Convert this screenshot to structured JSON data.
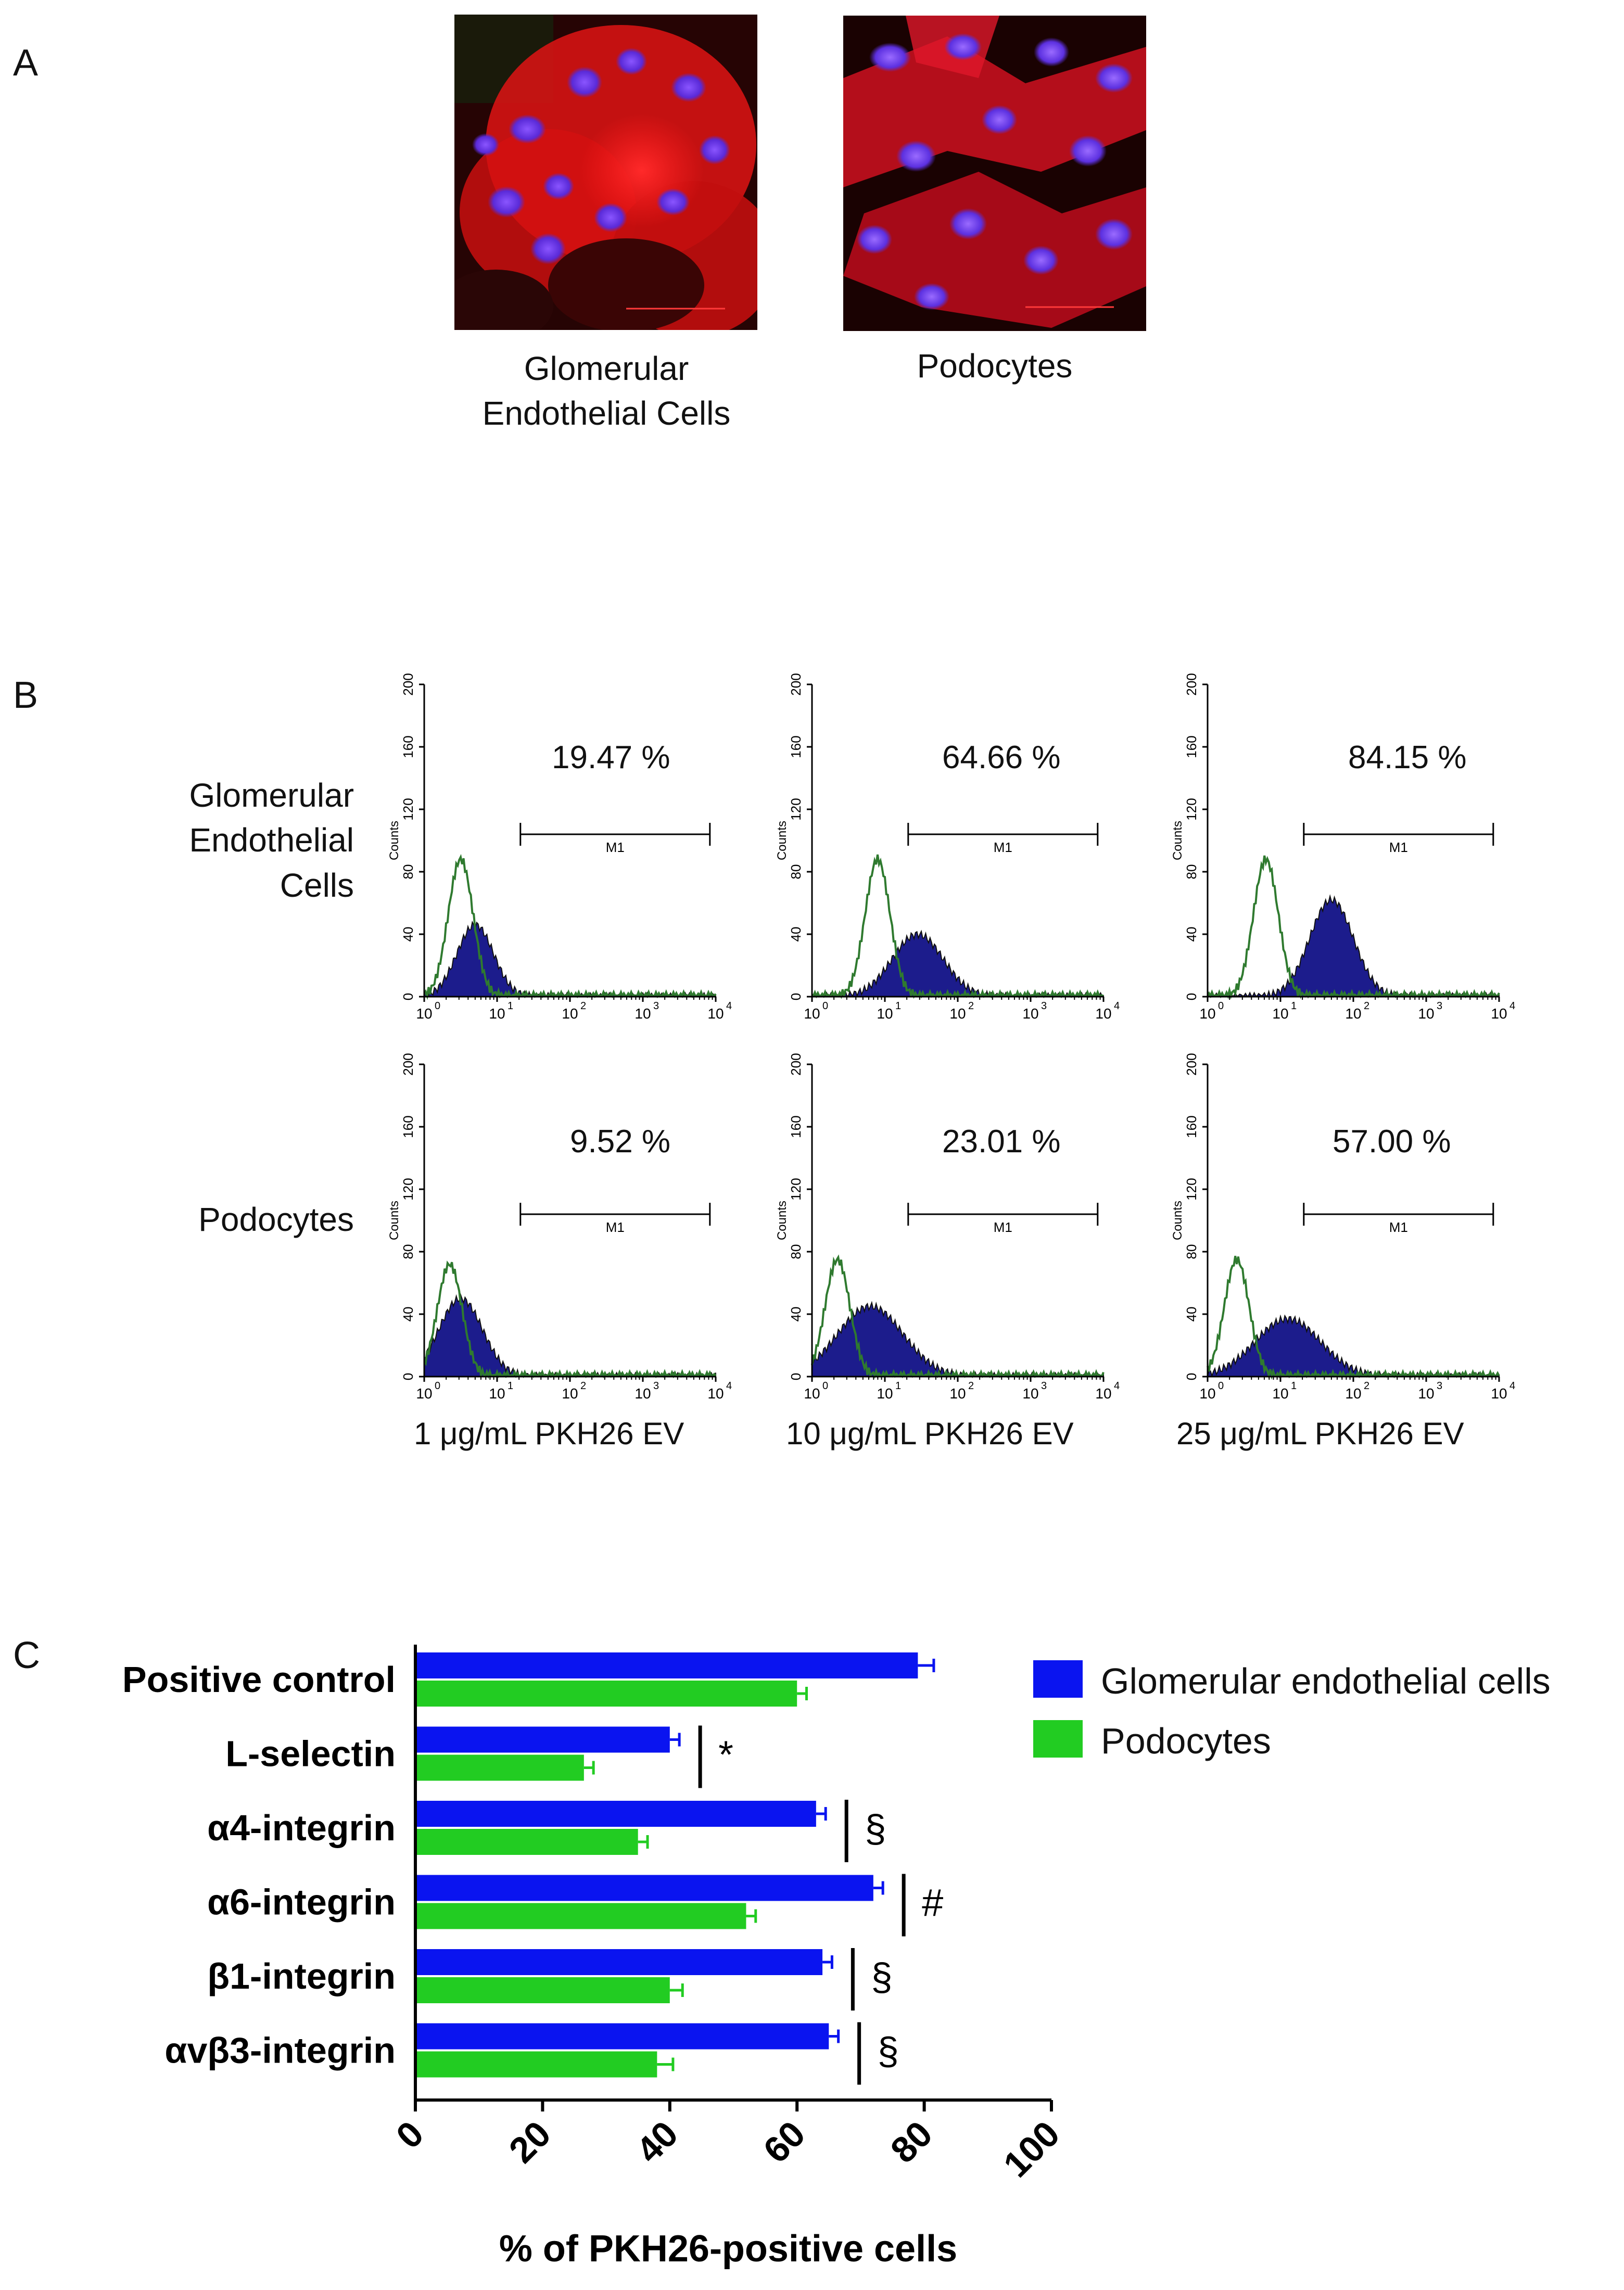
{
  "panel_a": {
    "letter": "A",
    "images": [
      {
        "caption_line1": "Glomerular",
        "caption_line2": "Endothelial Cells"
      },
      {
        "caption_line1": "Podocytes",
        "caption_line2": ""
      }
    ]
  },
  "panel_b": {
    "letter": "B",
    "row_labels": [
      {
        "line1": "Glomerular",
        "line2": "Endothelial",
        "line3": "Cells"
      },
      {
        "line1": "Podocytes",
        "line2": "",
        "line3": ""
      }
    ],
    "concentrations": [
      "1 μg/mL PKH26 EV",
      "10 μg/mL PKH26 EV",
      "25 μg/mL PKH26 EV"
    ],
    "y_axis_label": "Counts",
    "gate_label": "M1",
    "y_ticks": [
      "0",
      "40",
      "80",
      "120",
      "160",
      "200"
    ],
    "x_ticks": [
      "10",
      "10",
      "10",
      "10",
      "10"
    ],
    "x_exponents": [
      "0",
      "1",
      "2",
      "3",
      "4"
    ],
    "histograms": [
      {
        "percent": "19.47 %",
        "ctrl_peak": 0.5,
        "ctrl_height": 88,
        "sample_peak": 0.7,
        "sample_height": 46,
        "sample_width": 0.25
      },
      {
        "percent": "64.66 %",
        "ctrl_peak": 0.9,
        "ctrl_height": 88,
        "sample_peak": 1.45,
        "sample_height": 40,
        "sample_width": 0.35
      },
      {
        "percent": "84.15 %",
        "ctrl_peak": 0.8,
        "ctrl_height": 88,
        "sample_peak": 1.7,
        "sample_height": 62,
        "sample_width": 0.3
      },
      {
        "percent": "9.52 %",
        "ctrl_peak": 0.35,
        "ctrl_height": 72,
        "sample_peak": 0.5,
        "sample_height": 50,
        "sample_width": 0.3
      },
      {
        "percent": "23.01 %",
        "ctrl_peak": 0.35,
        "ctrl_height": 75,
        "sample_peak": 0.8,
        "sample_height": 45,
        "sample_width": 0.45
      },
      {
        "percent": "57.00 %",
        "ctrl_peak": 0.4,
        "ctrl_height": 75,
        "sample_peak": 1.1,
        "sample_height": 37,
        "sample_width": 0.45
      }
    ]
  },
  "panel_c": {
    "letter": "C",
    "significance_markers": [
      "",
      "*",
      "§",
      "#",
      "§",
      "§"
    ]
  },
  "chart_data": {
    "type": "bar",
    "orientation": "horizontal",
    "title": "",
    "categories": [
      "Positive control",
      "L-selectin",
      "α4-integrin",
      "α6-integrin",
      "β1-integrin",
      "αvβ3-integrin"
    ],
    "series": [
      {
        "name": "Glomerular endothelial cells",
        "color": "#0a14f0",
        "values": [
          79,
          40,
          63,
          72,
          64,
          65
        ],
        "errors": [
          2.5,
          1.5,
          1.5,
          1.5,
          1.5,
          1.5
        ]
      },
      {
        "name": "Podocytes",
        "color": "#22cc22",
        "values": [
          60,
          26.5,
          35,
          52,
          40,
          38
        ],
        "errors": [
          1.5,
          1.5,
          1.5,
          1.5,
          2.0,
          2.5
        ]
      }
    ],
    "xlabel": "% of PKH26-positive cells",
    "ylabel": "",
    "xlim": [
      0,
      100
    ],
    "x_ticks": [
      "0",
      "20",
      "40",
      "60",
      "80",
      "100"
    ],
    "legend_position": "top-right",
    "grid": false
  }
}
